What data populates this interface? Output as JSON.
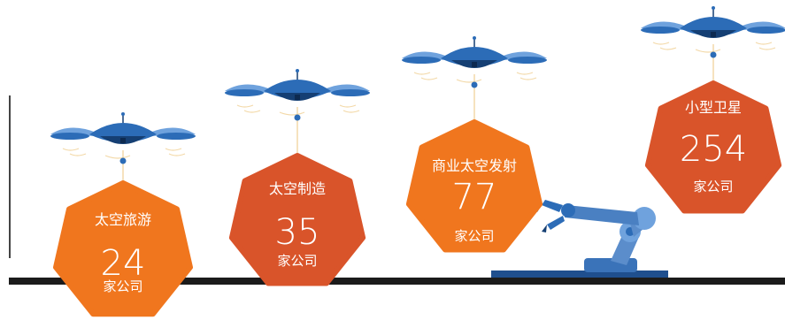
{
  "colors": {
    "orange": "#F0761E",
    "orange_dark": "#D9542A",
    "drone_blue": "#2C6CB7",
    "drone_dark": "#153F73",
    "drone_light": "#6FA2DD",
    "ground": "#1b1b1b",
    "arm_blue": "#5B8DCB",
    "rope": "#F3D9A8"
  },
  "items": [
    {
      "name": "太空旅游",
      "count": "24",
      "unit": "家公司",
      "color": "orange"
    },
    {
      "name": "太空制造",
      "count": "35",
      "unit": "家公司",
      "color": "orange_dark"
    },
    {
      "name": "商业太空发射",
      "count": "77",
      "unit": "家公司",
      "color": "orange"
    },
    {
      "name": "小型卫星",
      "count": "254",
      "unit": "家公司",
      "color": "orange_dark"
    }
  ]
}
